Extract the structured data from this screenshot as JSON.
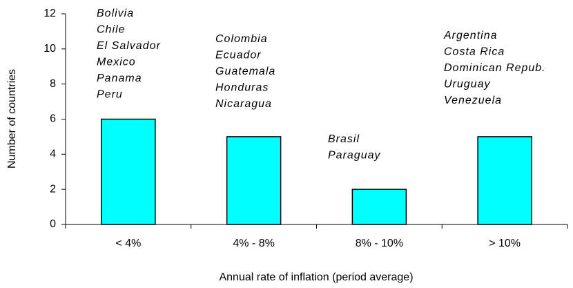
{
  "chart_data": {
    "type": "bar",
    "xlabel": "Annual rate of inflation (period average)",
    "ylabel": "Number of countries",
    "categories": [
      "< 4%",
      "4% - 8%",
      "8% - 10%",
      "> 10%"
    ],
    "values": [
      6,
      5,
      2,
      5
    ],
    "color": "#00ffff",
    "ylim": [
      0,
      12
    ],
    "yticks": [
      0,
      2,
      4,
      6,
      8,
      10,
      12
    ],
    "annotations": [
      [
        "Bolivia",
        "Chile",
        "El Salvador",
        "Mexico",
        "Panama",
        "Peru"
      ],
      [
        "Colombia",
        "Ecuador",
        "Guatemala",
        "Honduras",
        "Nicaragua"
      ],
      [
        "Brasil",
        "Paraguay"
      ],
      [
        "Argentina",
        "Costa Rica",
        "Dominican Repub.",
        "Uruguay",
        "Venezuela"
      ]
    ]
  }
}
